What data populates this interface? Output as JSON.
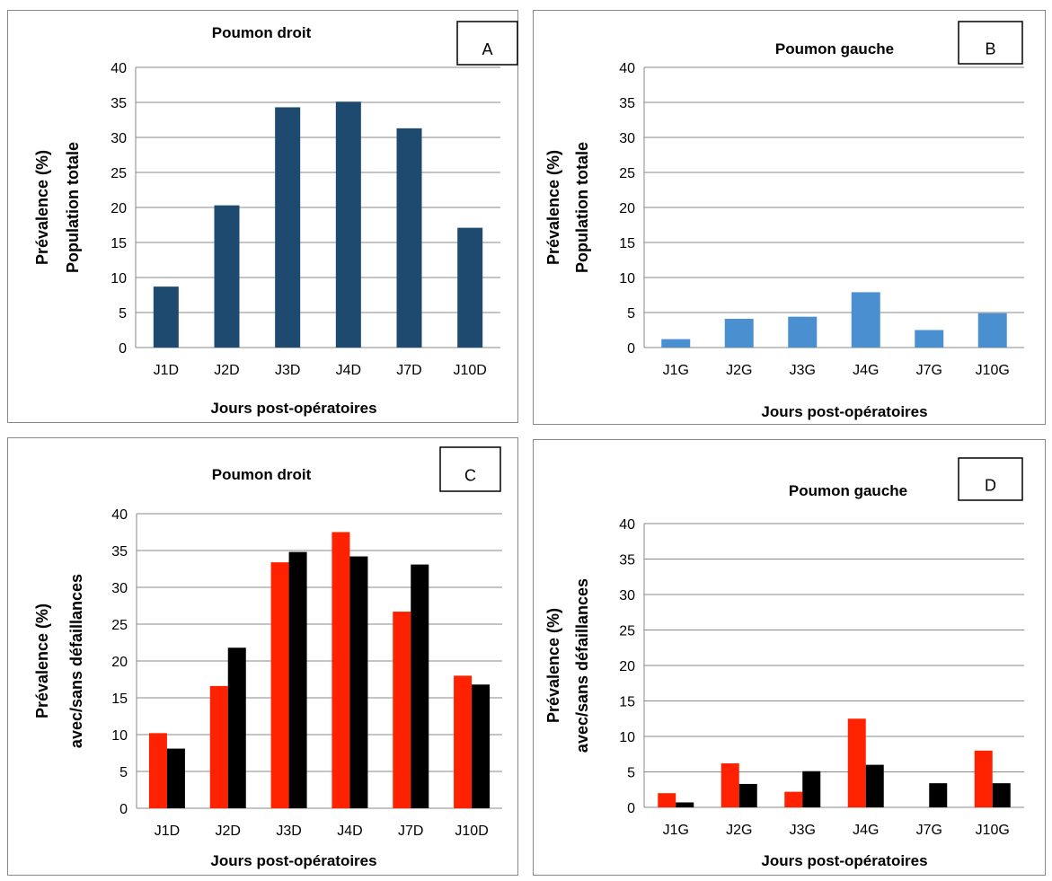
{
  "chart_data": [
    {
      "panel_letter": "A",
      "type": "bar",
      "title": "Poumon droit",
      "xlabel": "Jours post-opératoires",
      "ylabel_lines": [
        "Prévalence (%)",
        "Population totale"
      ],
      "categories": [
        "J1D",
        "J2D",
        "J3D",
        "J4D",
        "J7D",
        "J10D"
      ],
      "series": [
        {
          "values": [
            8.7,
            20.3,
            34.3,
            35.1,
            31.3,
            17.1
          ],
          "color": "#1f4a70"
        }
      ],
      "ylim": [
        0,
        40
      ],
      "yticks": [
        0,
        5,
        10,
        15,
        20,
        25,
        30,
        35,
        40
      ],
      "grid": true
    },
    {
      "panel_letter": "B",
      "type": "bar",
      "title": "Poumon gauche",
      "xlabel": "Jours post-opératoires",
      "ylabel_lines": [
        "Prévalence (%)",
        "Population totale"
      ],
      "categories": [
        "J1G",
        "J2G",
        "J3G",
        "J4G",
        "J7G",
        "J10G"
      ],
      "series": [
        {
          "values": [
            1.2,
            4.1,
            4.4,
            7.9,
            2.5,
            4.9
          ],
          "color": "#4a90d0"
        }
      ],
      "ylim": [
        0,
        40
      ],
      "yticks": [
        0,
        5,
        10,
        15,
        20,
        25,
        30,
        35,
        40
      ],
      "grid": true
    },
    {
      "panel_letter": "C",
      "type": "bar",
      "title": "Poumon droit",
      "xlabel": "Jours post-opératoires",
      "ylabel_lines": [
        "Prévalence (%)",
        "avec/sans défaillances"
      ],
      "categories": [
        "J1D",
        "J2D",
        "J3D",
        "J4D",
        "J7D",
        "J10D"
      ],
      "series": [
        {
          "values": [
            10.2,
            16.6,
            33.4,
            37.5,
            26.7,
            18.0
          ],
          "color": "#ff2200"
        },
        {
          "values": [
            8.1,
            21.8,
            34.8,
            34.2,
            33.1,
            16.8
          ],
          "color": "#000000"
        }
      ],
      "ylim": [
        0,
        40
      ],
      "yticks": [
        0,
        5,
        10,
        15,
        20,
        25,
        30,
        35,
        40
      ],
      "grid": true
    },
    {
      "panel_letter": "D",
      "type": "bar",
      "title": "Poumon gauche",
      "xlabel": "Jours post-opératoires",
      "ylabel_lines": [
        "Prévalence (%)",
        "avec/sans défaillances"
      ],
      "categories": [
        "J1G",
        "J2G",
        "J3G",
        "J4G",
        "J7G",
        "J10G"
      ],
      "series": [
        {
          "values": [
            2.0,
            6.2,
            2.2,
            12.5,
            0,
            8.0
          ],
          "color": "#ff2200"
        },
        {
          "values": [
            0.7,
            3.3,
            5.1,
            6.0,
            3.4,
            3.4
          ],
          "color": "#000000"
        }
      ],
      "ylim": [
        0,
        40
      ],
      "yticks": [
        0,
        5,
        10,
        15,
        20,
        25,
        30,
        35,
        40
      ],
      "grid": true
    }
  ]
}
